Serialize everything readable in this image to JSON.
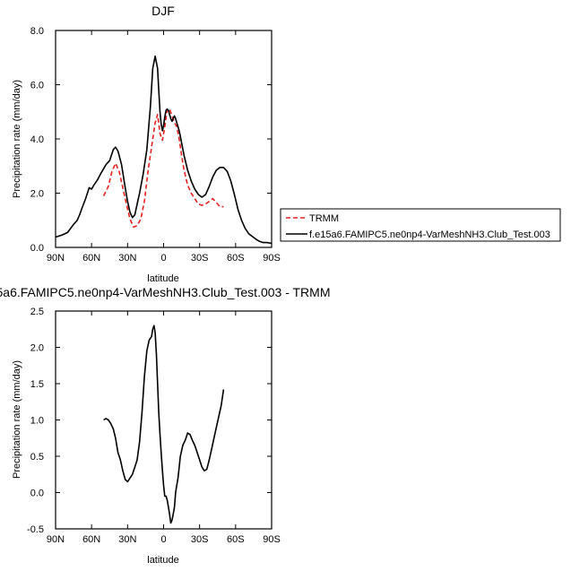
{
  "chart_data": [
    {
      "type": "line",
      "title": "DJF",
      "xlabel": "latitude",
      "ylabel": "Precipitation rate (mm/day)",
      "xlim": [
        90,
        -90
      ],
      "ylim": [
        0,
        8
      ],
      "xticks": [
        90,
        60,
        30,
        0,
        -30,
        -60,
        -90
      ],
      "xtick_labels": [
        "90N",
        "60N",
        "30N",
        "0",
        "30S",
        "60S",
        "90S"
      ],
      "yticks": [
        0,
        2,
        4,
        6,
        8
      ],
      "ytick_labels": [
        "0.0",
        "2.0",
        "4.0",
        "6.0",
        "8.0"
      ],
      "legend_position": "right",
      "series": [
        {
          "name": "TRMM",
          "color": "#e8201d",
          "dash": "dashed",
          "x": [
            50,
            46,
            43,
            40,
            37,
            34,
            31,
            28,
            25,
            22,
            19,
            16,
            13,
            10,
            7,
            5,
            3,
            1,
            -1,
            -3,
            -5,
            -7,
            -9,
            -11,
            -13,
            -15,
            -17,
            -20,
            -23,
            -26,
            -29,
            -32,
            -35,
            -38,
            -41,
            -44,
            -47,
            -50
          ],
          "values": [
            1.9,
            2.25,
            2.8,
            3.1,
            2.8,
            2.2,
            1.6,
            1.05,
            0.75,
            0.8,
            1.05,
            1.7,
            2.8,
            3.7,
            4.6,
            4.9,
            4.2,
            3.95,
            4.45,
            5.1,
            5.1,
            4.85,
            4.6,
            4.45,
            4.0,
            3.4,
            2.85,
            2.3,
            2.0,
            1.8,
            1.6,
            1.55,
            1.6,
            1.7,
            1.8,
            1.65,
            1.5,
            1.5
          ]
        },
        {
          "name": "f.e15a6.FAMIPC5.ne0np4-VarMeshNH3.Club_Test.003",
          "color": "#000000",
          "dash": "solid",
          "x": [
            90,
            85,
            80,
            75,
            72,
            70,
            68,
            65,
            62,
            60,
            58,
            55,
            52,
            50,
            48,
            45,
            42,
            40,
            38,
            35,
            32,
            30,
            28,
            26,
            24,
            22,
            20,
            17,
            14,
            11,
            9,
            7,
            5,
            4,
            3,
            2,
            1,
            0,
            -1,
            -2,
            -3,
            -4,
            -5,
            -6,
            -7,
            -8,
            -9,
            -10,
            -11,
            -12,
            -13,
            -14,
            -15,
            -17,
            -20,
            -23,
            -26,
            -29,
            -32,
            -35,
            -38,
            -41,
            -44,
            -47,
            -50,
            -53,
            -56,
            -59,
            -62,
            -65,
            -68,
            -71,
            -74,
            -77,
            -80,
            -83,
            -86,
            -90
          ],
          "values": [
            0.38,
            0.45,
            0.55,
            0.85,
            1.0,
            1.2,
            1.45,
            1.8,
            2.2,
            2.15,
            2.3,
            2.5,
            2.75,
            2.9,
            3.05,
            3.2,
            3.6,
            3.7,
            3.55,
            3.05,
            2.2,
            1.7,
            1.3,
            1.1,
            1.2,
            1.6,
            2.0,
            2.7,
            3.6,
            5.2,
            6.6,
            7.05,
            6.6,
            5.8,
            5.0,
            4.55,
            4.3,
            4.5,
            4.8,
            5.05,
            5.1,
            5.05,
            4.9,
            4.75,
            4.65,
            4.75,
            4.85,
            4.75,
            4.6,
            4.45,
            4.3,
            4.1,
            3.85,
            3.4,
            2.85,
            2.45,
            2.15,
            1.95,
            1.85,
            1.95,
            2.25,
            2.6,
            2.85,
            2.95,
            2.95,
            2.8,
            2.45,
            1.95,
            1.4,
            1.0,
            0.7,
            0.5,
            0.4,
            0.3,
            0.22,
            0.18,
            0.18,
            0.15
          ]
        }
      ]
    },
    {
      "type": "line",
      "title": "5a6.FAMIPC5.ne0np4-VarMeshNH3.Club_Test.003 - TRMM",
      "xlabel": "latitude",
      "ylabel": "Precipitation rate (mm/day)",
      "xlim": [
        90,
        -90
      ],
      "ylim": [
        -0.5,
        2.5
      ],
      "xticks": [
        90,
        60,
        30,
        0,
        -30,
        -60,
        -90
      ],
      "xtick_labels": [
        "90N",
        "60N",
        "30N",
        "0",
        "30S",
        "60S",
        "90S"
      ],
      "yticks": [
        -0.5,
        0,
        0.5,
        1,
        1.5,
        2,
        2.5
      ],
      "ytick_labels": [
        "-0.5",
        "0.0",
        "0.5",
        "1.0",
        "1.5",
        "2.0",
        "2.5"
      ],
      "series": [
        {
          "color": "#000000",
          "dash": "solid",
          "x": [
            50,
            48,
            46,
            44,
            42,
            40,
            38,
            36,
            34,
            32,
            30,
            28,
            26,
            24,
            22,
            20,
            18,
            16,
            14,
            12,
            10,
            9,
            8,
            7,
            6,
            5,
            4,
            3,
            2,
            1,
            0,
            -1,
            -2,
            -3,
            -4,
            -5,
            -6,
            -7,
            -8,
            -9,
            -10,
            -11,
            -12,
            -14,
            -16,
            -18,
            -20,
            -22,
            -24,
            -26,
            -28,
            -30,
            -32,
            -34,
            -36,
            -38,
            -40,
            -42,
            -44,
            -46,
            -48,
            -50
          ],
          "values": [
            1.0,
            1.02,
            1.0,
            0.95,
            0.88,
            0.75,
            0.55,
            0.45,
            0.3,
            0.18,
            0.15,
            0.2,
            0.25,
            0.35,
            0.45,
            0.7,
            1.1,
            1.6,
            1.95,
            2.1,
            2.15,
            2.25,
            2.3,
            2.2,
            1.9,
            1.5,
            1.1,
            0.8,
            0.55,
            0.3,
            0.1,
            -0.05,
            -0.05,
            -0.1,
            -0.2,
            -0.3,
            -0.42,
            -0.38,
            -0.3,
            -0.2,
            0.0,
            0.1,
            0.2,
            0.5,
            0.65,
            0.72,
            0.82,
            0.8,
            0.72,
            0.65,
            0.55,
            0.45,
            0.35,
            0.3,
            0.32,
            0.45,
            0.6,
            0.75,
            0.9,
            1.05,
            1.2,
            1.42
          ]
        }
      ]
    }
  ]
}
